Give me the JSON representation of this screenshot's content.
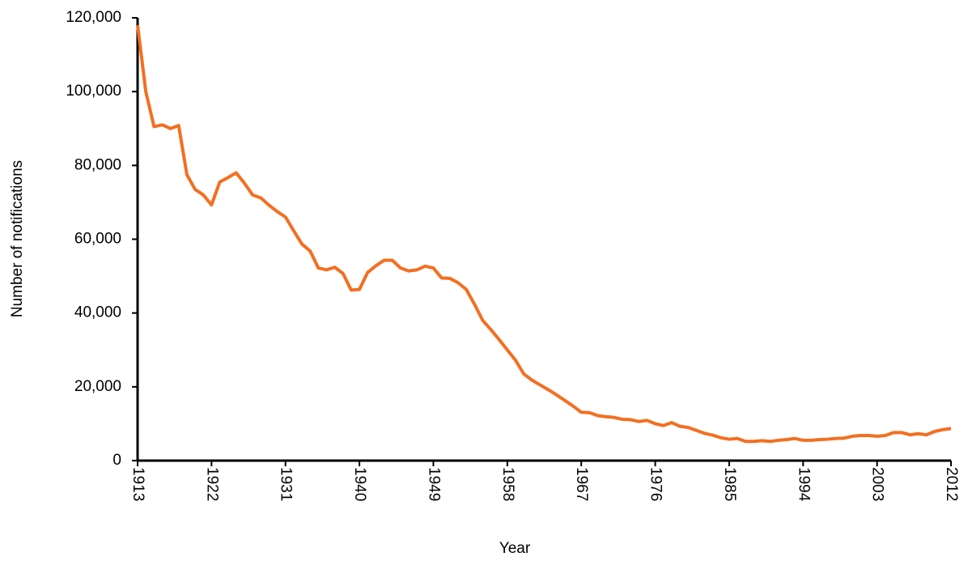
{
  "chart_data": {
    "type": "line",
    "x_label": "Year",
    "y_label": "Number of notifications",
    "x": [
      1913,
      1914,
      1915,
      1916,
      1917,
      1918,
      1919,
      1920,
      1921,
      1922,
      1923,
      1924,
      1925,
      1926,
      1927,
      1928,
      1929,
      1930,
      1931,
      1932,
      1933,
      1934,
      1935,
      1936,
      1937,
      1938,
      1939,
      1940,
      1941,
      1942,
      1943,
      1944,
      1945,
      1946,
      1947,
      1948,
      1949,
      1950,
      1951,
      1952,
      1953,
      1954,
      1955,
      1956,
      1957,
      1958,
      1959,
      1960,
      1961,
      1962,
      1963,
      1964,
      1965,
      1966,
      1967,
      1968,
      1969,
      1970,
      1971,
      1972,
      1973,
      1974,
      1975,
      1976,
      1977,
      1978,
      1979,
      1980,
      1981,
      1982,
      1983,
      1984,
      1985,
      1986,
      1987,
      1988,
      1989,
      1990,
      1991,
      1992,
      1993,
      1994,
      1995,
      1996,
      1997,
      1998,
      1999,
      2000,
      2001,
      2002,
      2003,
      2004,
      2005,
      2006,
      2007,
      2008,
      2009,
      2010,
      2011,
      2012
    ],
    "series": [
      {
        "name": "Notifications",
        "color": "#f36f21",
        "values": [
          118000,
          100000,
          90500,
          91000,
          90000,
          90800,
          77500,
          73500,
          72000,
          69300,
          75500,
          76700,
          78000,
          75200,
          72000,
          71200,
          69200,
          67500,
          66000,
          62300,
          58700,
          56800,
          52200,
          51700,
          52400,
          50700,
          46200,
          46400,
          51000,
          52800,
          54300,
          54300,
          52200,
          51400,
          51700,
          52700,
          52200,
          49500,
          49400,
          48200,
          46400,
          42400,
          38000,
          35500,
          32800,
          30000,
          27200,
          23500,
          21800,
          20500,
          19200,
          17800,
          16300,
          14800,
          13100,
          13000,
          12200,
          11900,
          11700,
          11200,
          11100,
          10600,
          10900,
          10000,
          9500,
          10300,
          9300,
          9000,
          8200,
          7400,
          6900,
          6200,
          5800,
          6000,
          5200,
          5200,
          5400,
          5200,
          5500,
          5700,
          6000,
          5500,
          5500,
          5700,
          5800,
          6000,
          6100,
          6600,
          6800,
          6800,
          6600,
          6800,
          7600,
          7600,
          7000,
          7300,
          7000,
          7900,
          8400,
          8700
        ]
      }
    ],
    "xlim": [
      1913,
      2012
    ],
    "xticks": [
      1913,
      1922,
      1931,
      1940,
      1949,
      1958,
      1967,
      1976,
      1985,
      1994,
      2003,
      2012
    ],
    "ylim": [
      0,
      120000
    ],
    "yticks": [
      0,
      {
        "value": 20000,
        "label": "20,000"
      },
      {
        "value": 40000,
        "label": "40,000"
      },
      {
        "value": 60000,
        "label": "60,000"
      },
      {
        "value": 80000,
        "label": "80,000"
      },
      {
        "value": 100000,
        "label": "100,000"
      },
      {
        "value": 120000,
        "label": "120,000"
      }
    ]
  }
}
